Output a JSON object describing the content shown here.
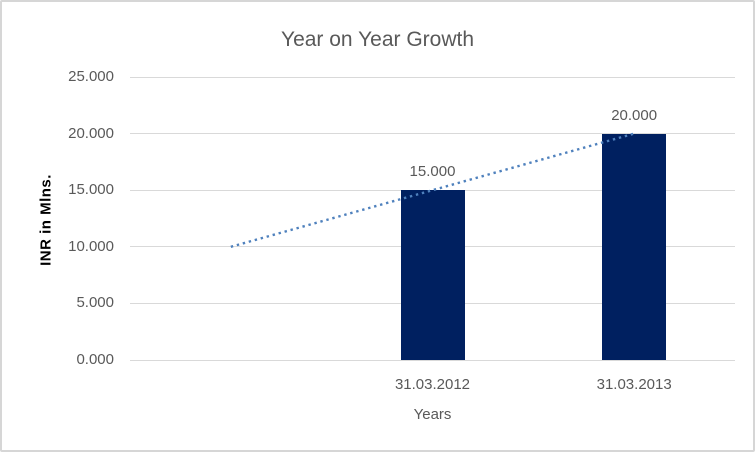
{
  "chart_data": {
    "type": "bar",
    "title": "Year on Year Growth",
    "ylabel": "INR in Mlns.",
    "xlabel": "Years",
    "categories": [
      "",
      "31.03.2012",
      "31.03.2013"
    ],
    "values": [
      null,
      15,
      20
    ],
    "data_labels": [
      null,
      "15.000",
      "20.000"
    ],
    "ylim": [
      0,
      25
    ],
    "y_ticks": [
      0,
      5,
      10,
      15,
      20,
      25
    ],
    "y_tick_labels": [
      "0.000",
      "5.000",
      "10.000",
      "15.000",
      "20.000",
      "25.000"
    ],
    "grid": true,
    "legend": "none",
    "trendline": {
      "type": "linear",
      "style": "dotted",
      "start": {
        "category_index": 0,
        "value": 10
      },
      "end": {
        "category_index": 2,
        "value": 20
      }
    },
    "colors": {
      "bar": "#002060",
      "trendline": "#4f81bd",
      "gridline": "#d9d9d9",
      "tick_text": "#595959",
      "title_text": "#595959",
      "axis_title_text": "#000000",
      "frame_border": "#d6d6d6",
      "background": "#ffffff"
    }
  }
}
